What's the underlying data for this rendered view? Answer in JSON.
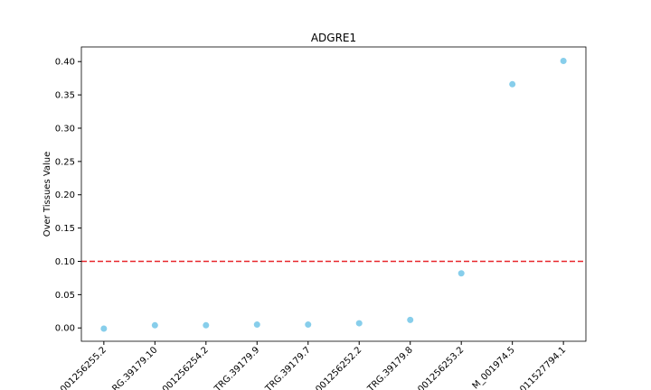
{
  "chart_data": {
    "type": "scatter",
    "title": "ADGRE1",
    "y_label": "Over Tissues Value",
    "categories": [
      "001256255.2",
      "RG.39179.10",
      "001256254.2",
      "TRG.39179.9",
      "TRG.39179.7",
      "001256252.2",
      "TRG.39179.8",
      "001256253.2",
      "M_001974.5",
      "011527794.1"
    ],
    "values": [
      -0.001,
      0.004,
      0.004,
      0.005,
      0.005,
      0.007,
      0.012,
      0.082,
      0.366,
      0.401
    ],
    "color": "#87ceeb",
    "threshold": 0.1,
    "threshold_color": "#e8262b",
    "ylim": [
      -0.02,
      0.422
    ],
    "yticks": [
      {
        "value": 0,
        "label": "0.00"
      },
      {
        "value": 0.05,
        "label": "0.05"
      },
      {
        "value": 0.1,
        "label": "0.10"
      },
      {
        "value": 0.15,
        "label": "0.15"
      },
      {
        "value": 0.2,
        "label": "0.20"
      },
      {
        "value": 0.25,
        "label": "0.25"
      },
      {
        "value": 0.3,
        "label": "0.30"
      },
      {
        "value": 0.35,
        "label": "0.35"
      },
      {
        "value": 0.4,
        "label": "0.40"
      }
    ]
  }
}
